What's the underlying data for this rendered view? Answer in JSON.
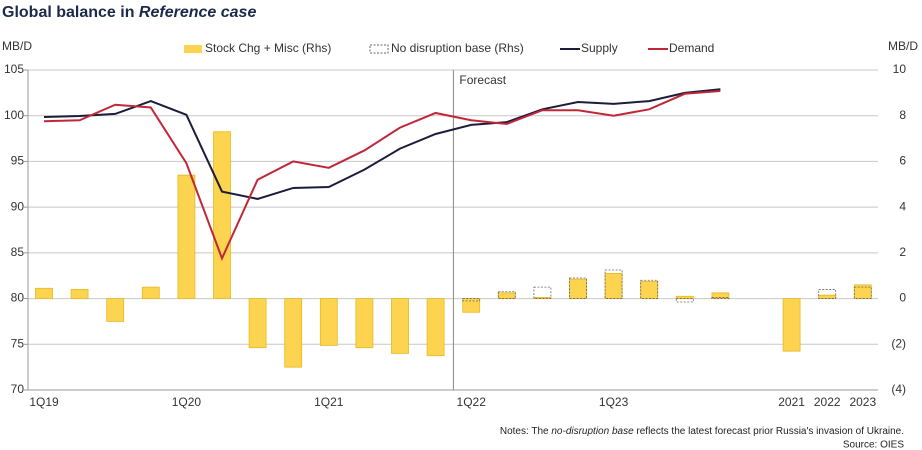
{
  "chart_data": {
    "type": "bar",
    "title": "Global balance in ",
    "title_italic": "Reference case",
    "y_axis_label": "MB/D",
    "y2_axis_label": "MB/D",
    "annotation": "Forecast",
    "notes": [
      "Notes: The ",
      "no-disruption base",
      " reflects the latest forecast prior Russia's invasion of Ukraine."
    ],
    "source": "Source: OIES",
    "categories": [
      "1Q19",
      null,
      null,
      null,
      "1Q20",
      null,
      null,
      null,
      "1Q21",
      null,
      null,
      null,
      "1Q22",
      null,
      null,
      null,
      "1Q23",
      null,
      null,
      null,
      null,
      "2021",
      "2022",
      "2023"
    ],
    "series": [
      {
        "name": "Stock Chg + Misc (Rhs)",
        "type": "bar",
        "axis": "y2",
        "color": "#fdd44f",
        "values": [
          0.45,
          0.4,
          -1.0,
          0.5,
          5.4,
          7.3,
          -2.15,
          -3.0,
          -2.05,
          -2.15,
          -2.4,
          -2.5,
          -0.6,
          0.25,
          0.05,
          0.85,
          1.1,
          0.75,
          0.1,
          0.25,
          null,
          -2.3,
          0.15,
          0.6
        ]
      },
      {
        "name": "No disruption base (Rhs)",
        "type": "outline",
        "axis": "y2",
        "color": "#666666",
        "values": [
          null,
          null,
          null,
          null,
          null,
          null,
          null,
          null,
          null,
          null,
          null,
          null,
          -0.1,
          0.3,
          0.5,
          0.9,
          1.25,
          0.8,
          -0.15,
          0.05,
          null,
          null,
          0.4,
          0.5
        ]
      },
      {
        "name": "Supply",
        "type": "line",
        "color": "#1c1c3c",
        "values": [
          99.86,
          99.97,
          100.2,
          101.6,
          100.1,
          91.7,
          90.9,
          92.1,
          92.2,
          94.1,
          96.4,
          98.0,
          99.0,
          99.3,
          100.7,
          101.5,
          101.3,
          101.6,
          102.5,
          102.9,
          null,
          null,
          null,
          null
        ]
      },
      {
        "name": "Demand",
        "type": "line",
        "color": "#c0283a",
        "values": [
          99.4,
          99.5,
          101.2,
          100.9,
          94.8,
          84.4,
          93.0,
          95.0,
          94.3,
          96.2,
          98.7,
          100.3,
          99.5,
          99.1,
          100.6,
          100.6,
          100.0,
          100.7,
          102.4,
          102.7,
          null,
          null,
          null,
          null
        ]
      }
    ],
    "ylim": [
      70,
      105
    ],
    "yticks": [
      70,
      75,
      80,
      85,
      90,
      95,
      100,
      105
    ],
    "y2lim": [
      -4,
      10
    ],
    "y2ticks": [
      {
        "value": -4,
        "label": "(4)"
      },
      {
        "value": -2,
        "label": "(2)"
      },
      0,
      2,
      4,
      6,
      8,
      10
    ],
    "grid": true
  }
}
